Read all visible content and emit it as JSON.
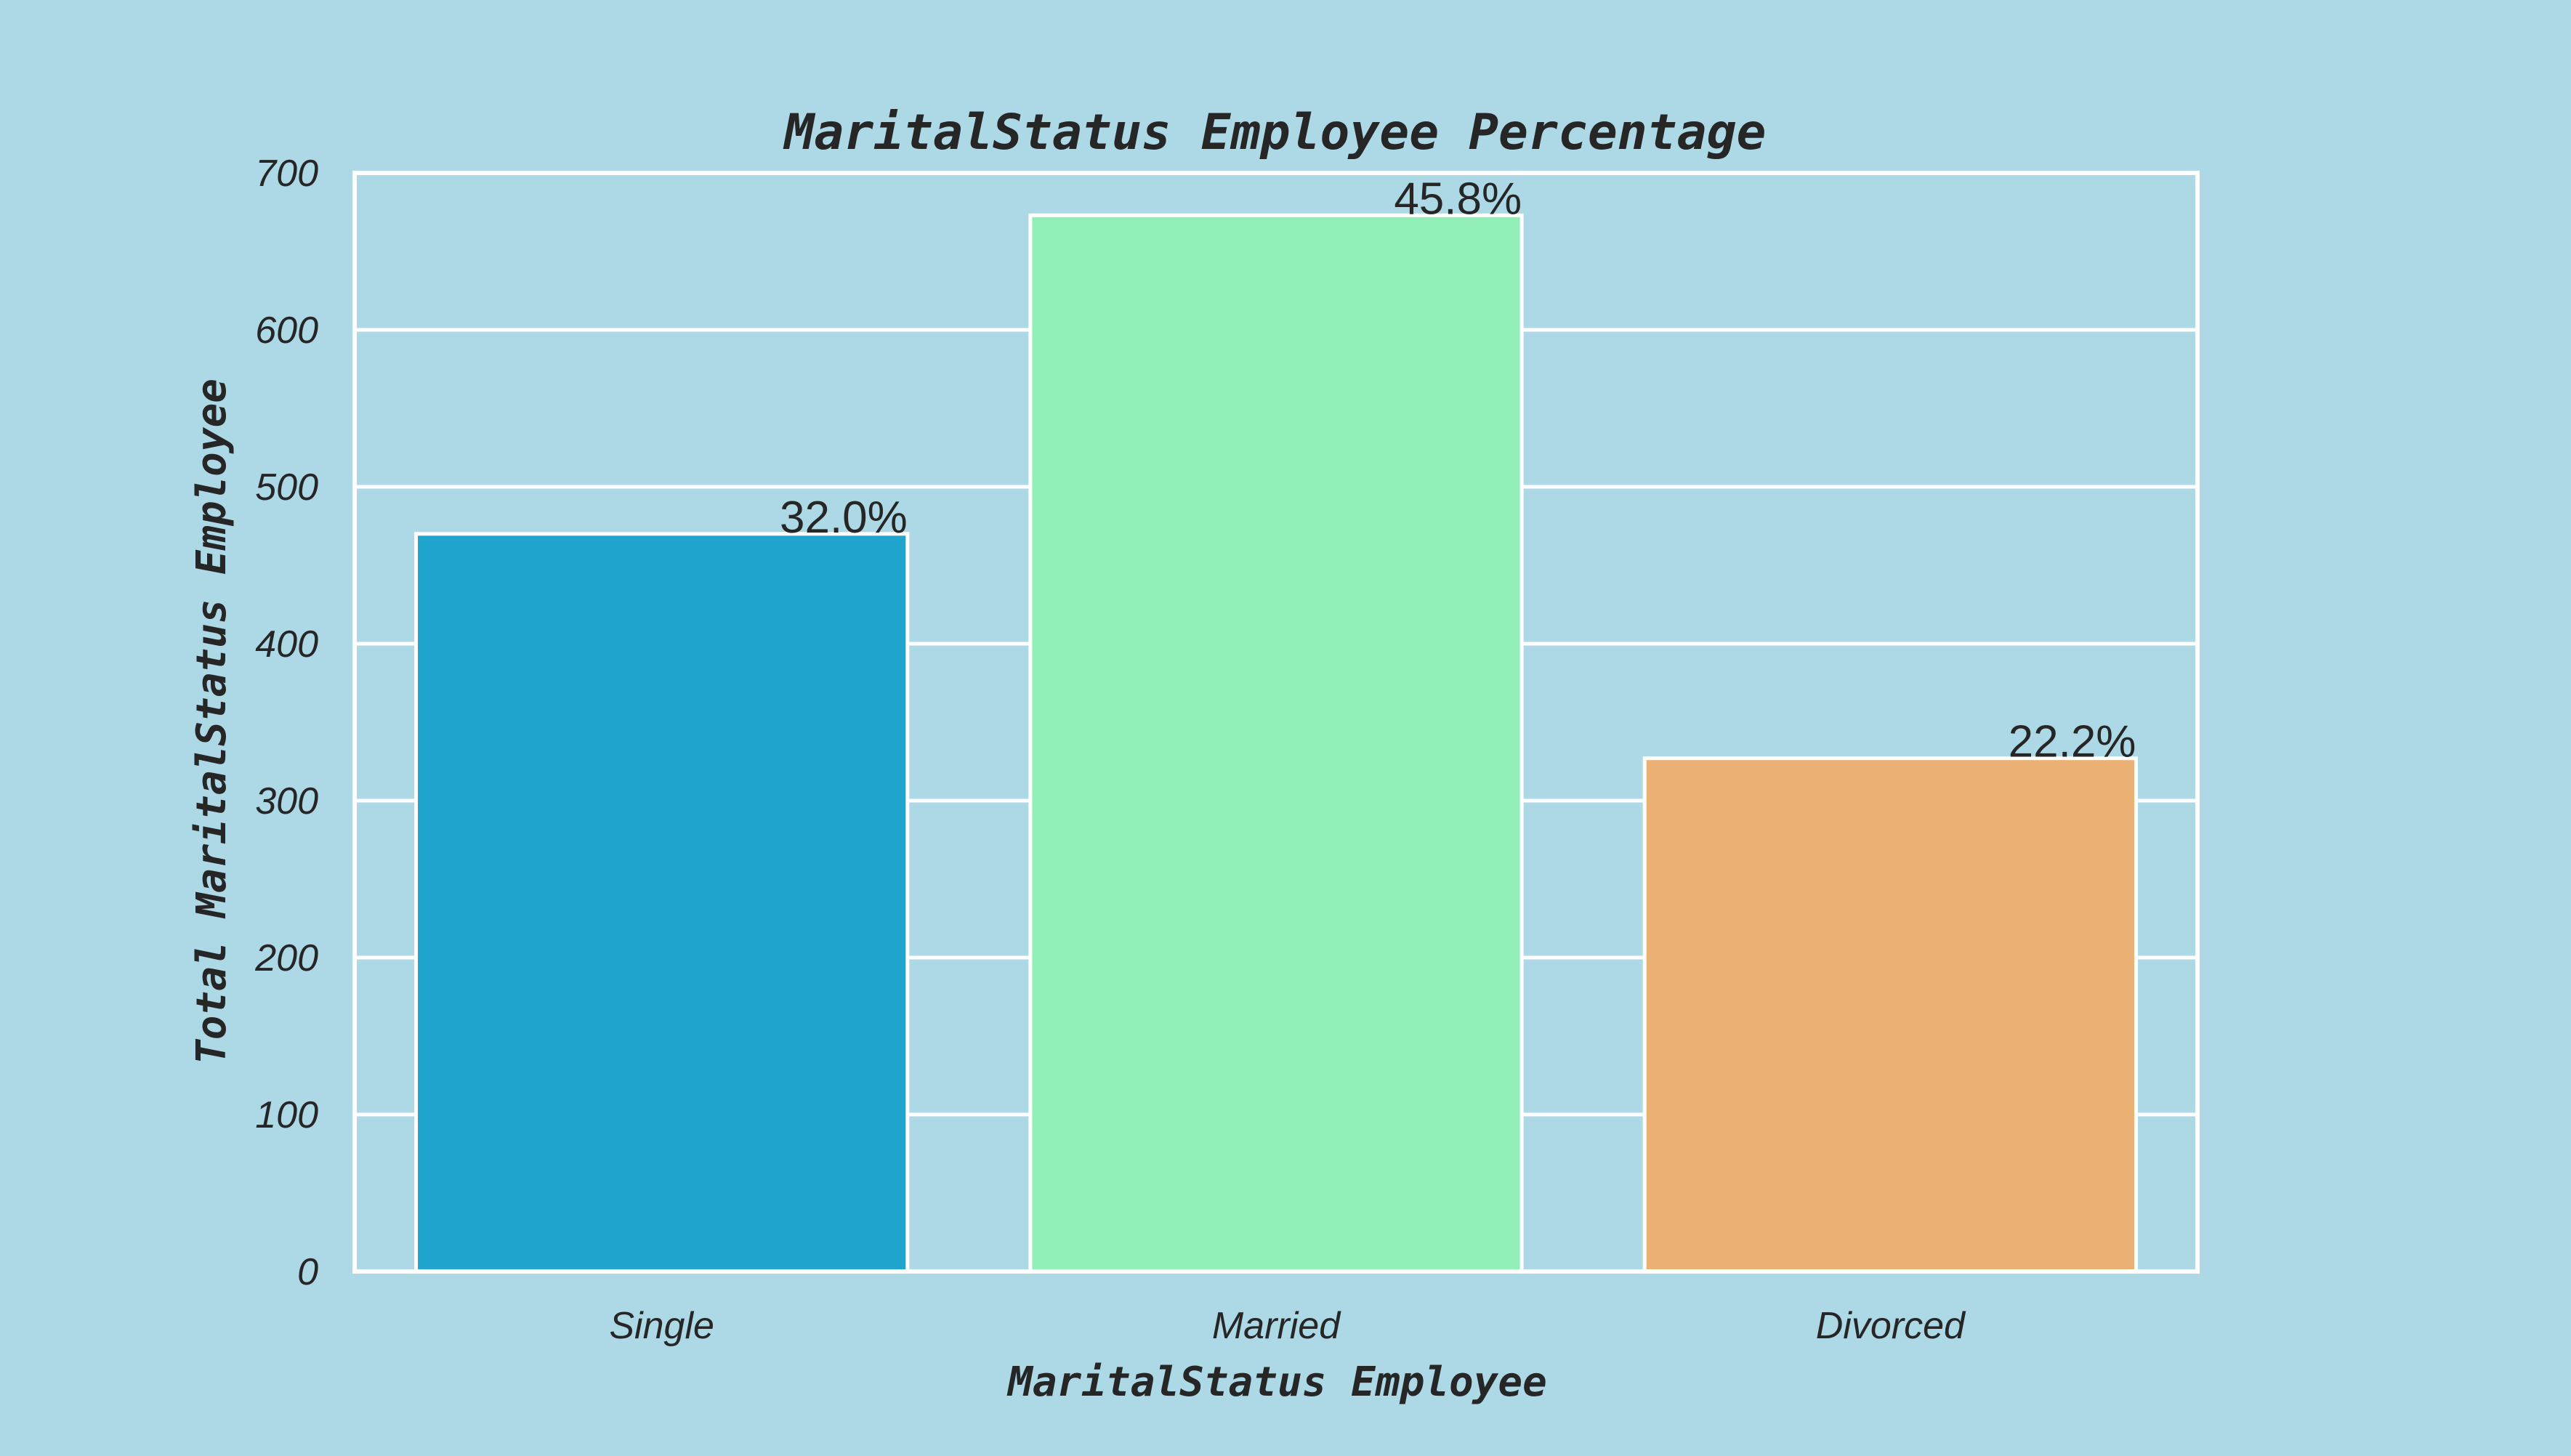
{
  "chart_data": {
    "type": "bar",
    "title": "MaritalStatus Employee Percentage",
    "xlabel": "MaritalStatus Employee",
    "ylabel": "Total MaritalStatus Employee",
    "categories": [
      "Single",
      "Married",
      "Divorced"
    ],
    "values": [
      470,
      673,
      327
    ],
    "data_labels": [
      "32.0%",
      "45.8%",
      "22.2%"
    ],
    "bar_colors": [
      "#1fa5ce",
      "#91efb7",
      "#ebb074"
    ],
    "ylim": [
      0,
      700
    ],
    "yticks": [
      0,
      100,
      200,
      300,
      400,
      500,
      600,
      700
    ],
    "grid": true,
    "background_color": "#add8e6",
    "grid_color": "#ffffff"
  }
}
